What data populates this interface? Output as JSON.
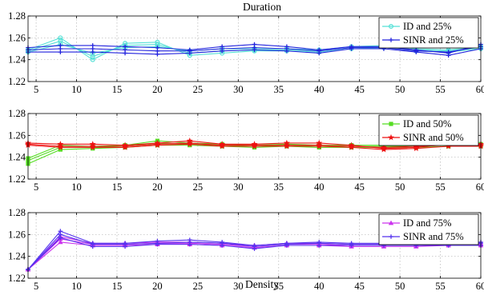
{
  "figure": {
    "title": "Duration",
    "xlabel": "Density"
  },
  "chart_data": [
    {
      "type": "line",
      "x": [
        4,
        8,
        12,
        16,
        20,
        24,
        28,
        32,
        36,
        40,
        44,
        48,
        52,
        56,
        60
      ],
      "xlim": [
        4,
        60
      ],
      "ylim": [
        1.22,
        1.28
      ],
      "xticks": [
        "5",
        "10",
        "15",
        "20",
        "25",
        "30",
        "35",
        "40",
        "45",
        "50",
        "55",
        "60"
      ],
      "yticks": [
        "1.22",
        "1.24",
        "1.26",
        "1.28"
      ],
      "grid": true,
      "legend_position": "top-right",
      "series": [
        {
          "name": "ID and 25%",
          "color": "#55e0d6",
          "marker": "circle",
          "values": [
            1.248,
            1.257,
            1.243,
            1.253,
            1.254,
            1.246,
            1.248,
            1.249,
            1.249,
            1.248,
            1.251,
            1.252,
            1.249,
            1.248,
            1.251
          ],
          "lines": [
            [
              1.249,
              1.26,
              1.24,
              1.255,
              1.256,
              1.244,
              1.246,
              1.248,
              1.248,
              1.247,
              1.25,
              1.251,
              1.248,
              1.247,
              1.25
            ],
            [
              1.247,
              1.254,
              1.246,
              1.251,
              1.252,
              1.248,
              1.25,
              1.25,
              1.25,
              1.249,
              1.252,
              1.253,
              1.25,
              1.249,
              1.252
            ]
          ]
        },
        {
          "name": "SINR and 25%",
          "color": "#2222dd",
          "marker": "plus",
          "values": [
            1.249,
            1.25,
            1.25,
            1.249,
            1.248,
            1.248,
            1.25,
            1.251,
            1.25,
            1.248,
            1.251,
            1.251,
            1.248,
            1.247,
            1.252
          ],
          "lines": [
            [
              1.251,
              1.253,
              1.253,
              1.252,
              1.251,
              1.249,
              1.252,
              1.254,
              1.252,
              1.249,
              1.252,
              1.252,
              1.249,
              1.246,
              1.254
            ],
            [
              1.247,
              1.247,
              1.247,
              1.246,
              1.245,
              1.246,
              1.248,
              1.249,
              1.248,
              1.246,
              1.25,
              1.25,
              1.247,
              1.244,
              1.25
            ]
          ]
        }
      ]
    },
    {
      "type": "line",
      "x": [
        4,
        8,
        12,
        16,
        20,
        24,
        28,
        32,
        36,
        40,
        44,
        48,
        52,
        56,
        60
      ],
      "xlim": [
        4,
        60
      ],
      "ylim": [
        1.22,
        1.28
      ],
      "xticks": [
        "5",
        "10",
        "15",
        "20",
        "25",
        "30",
        "35",
        "40",
        "45",
        "50",
        "55",
        "60"
      ],
      "yticks": [
        "1.22",
        "1.24",
        "1.26",
        "1.28"
      ],
      "grid": true,
      "legend_position": "top-right",
      "series": [
        {
          "name": "ID and 50%",
          "color": "#55dd22",
          "marker": "square",
          "values": [
            1.237,
            1.249,
            1.249,
            1.25,
            1.253,
            1.252,
            1.251,
            1.25,
            1.251,
            1.25,
            1.25,
            1.25,
            1.25,
            1.251,
            1.251
          ],
          "lines": [
            [
              1.234,
              1.247,
              1.248,
              1.249,
              1.251,
              1.251,
              1.25,
              1.249,
              1.25,
              1.249,
              1.249,
              1.249,
              1.249,
              1.25,
              1.25
            ],
            [
              1.239,
              1.251,
              1.25,
              1.251,
              1.255,
              1.253,
              1.252,
              1.251,
              1.252,
              1.251,
              1.251,
              1.251,
              1.251,
              1.252,
              1.252
            ]
          ]
        },
        {
          "name": "SINR and 50%",
          "color": "#ee1111",
          "marker": "star",
          "values": [
            1.252,
            1.25,
            1.25,
            1.25,
            1.252,
            1.253,
            1.251,
            1.251,
            1.251,
            1.251,
            1.25,
            1.249,
            1.25,
            1.251,
            1.251
          ],
          "lines": [
            [
              1.253,
              1.252,
              1.252,
              1.251,
              1.253,
              1.255,
              1.252,
              1.252,
              1.253,
              1.253,
              1.251,
              1.248,
              1.249,
              1.252,
              1.252
            ],
            [
              1.251,
              1.249,
              1.249,
              1.249,
              1.251,
              1.252,
              1.25,
              1.25,
              1.25,
              1.25,
              1.249,
              1.247,
              1.248,
              1.25,
              1.25
            ]
          ]
        }
      ]
    },
    {
      "type": "line",
      "x": [
        4,
        8,
        12,
        16,
        20,
        24,
        28,
        32,
        36,
        40,
        44,
        48,
        52,
        56,
        60
      ],
      "xlim": [
        4,
        60
      ],
      "ylim": [
        1.22,
        1.28
      ],
      "xticks": [
        "5",
        "10",
        "15",
        "20",
        "25",
        "30",
        "35",
        "40",
        "45",
        "50",
        "55",
        "60"
      ],
      "yticks": [
        "1.22",
        "1.24",
        "1.26",
        "1.28"
      ],
      "grid": true,
      "legend_position": "top-right",
      "series": [
        {
          "name": "ID and 75%",
          "color": "#cc33ee",
          "marker": "triangle",
          "values": [
            1.228,
            1.256,
            1.251,
            1.251,
            1.252,
            1.252,
            1.251,
            1.249,
            1.251,
            1.251,
            1.25,
            1.25,
            1.25,
            1.251,
            1.251
          ],
          "lines": [
            [
              1.228,
              1.253,
              1.25,
              1.25,
              1.251,
              1.251,
              1.25,
              1.248,
              1.25,
              1.25,
              1.249,
              1.249,
              1.249,
              1.25,
              1.25
            ],
            [
              1.228,
              1.258,
              1.252,
              1.252,
              1.253,
              1.253,
              1.252,
              1.25,
              1.252,
              1.252,
              1.251,
              1.251,
              1.251,
              1.252,
              1.252
            ]
          ]
        },
        {
          "name": "SINR and 75%",
          "color": "#5533ee",
          "marker": "plus",
          "values": [
            1.228,
            1.26,
            1.251,
            1.251,
            1.252,
            1.253,
            1.252,
            1.249,
            1.251,
            1.252,
            1.251,
            1.251,
            1.251,
            1.251,
            1.252
          ],
          "lines": [
            [
              1.228,
              1.263,
              1.252,
              1.252,
              1.254,
              1.255,
              1.253,
              1.25,
              1.252,
              1.253,
              1.252,
              1.252,
              1.252,
              1.252,
              1.253
            ],
            [
              1.228,
              1.257,
              1.249,
              1.249,
              1.251,
              1.251,
              1.25,
              1.247,
              1.25,
              1.25,
              1.25,
              1.25,
              1.25,
              1.25,
              1.25
            ]
          ]
        }
      ]
    }
  ]
}
